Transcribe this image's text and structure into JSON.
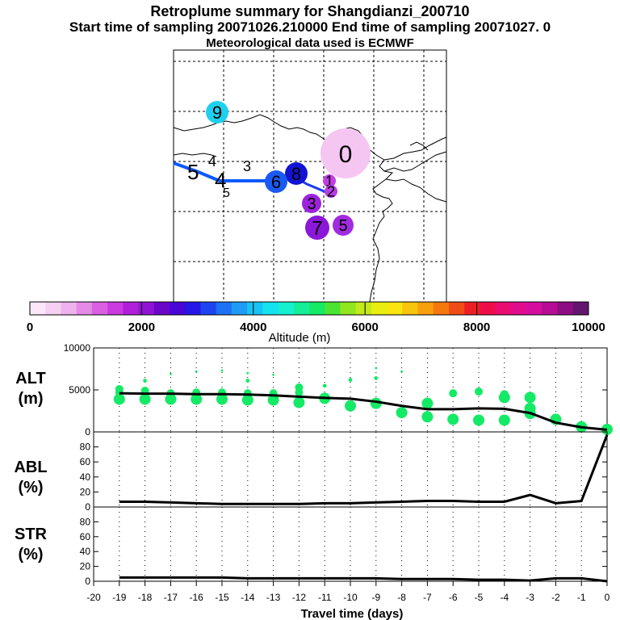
{
  "header": {
    "title": "Retroplume summary for Shangdianzi_200710",
    "subtitle": "Start time of sampling 20071026.210000     End time of sampling 20071027.     0",
    "met": "Meteorological data used is ECMWF"
  },
  "map": {
    "track_color": "#0a5aff",
    "track_color2": "#1a3cf0",
    "numbers_left": [
      "5",
      "4",
      "3",
      "4",
      "5"
    ],
    "markers": [
      {
        "label": "0",
        "color": "#f6c6f3",
        "size": "large"
      },
      {
        "label": "9",
        "color": "#1fd0ee",
        "size": "small"
      },
      {
        "label": "8",
        "color": "#1313d6",
        "size": "small"
      },
      {
        "label": "6",
        "color": "#1a5af2",
        "size": "small"
      },
      {
        "label": "1",
        "color": "#c23de6",
        "size": "tiny"
      },
      {
        "label": "2",
        "color": "#b83de6",
        "size": "tiny"
      },
      {
        "label": "3",
        "color": "#9c23db",
        "size": "small"
      },
      {
        "label": "7",
        "color": "#8b18d8",
        "size": "small"
      },
      {
        "label": "5",
        "color": "#a12be0",
        "size": "small"
      }
    ]
  },
  "colorbar": {
    "label": "Altitude (m)",
    "ticks": [
      "0",
      "2000",
      "4000",
      "6000",
      "8000",
      "10000"
    ],
    "colors": [
      "#fbe6fa",
      "#f5d0f3",
      "#eeb3ee",
      "#e68ae8",
      "#da60e2",
      "#c93be0",
      "#b11fdb",
      "#8f13d4",
      "#6a06c8",
      "#4a06d6",
      "#2717e6",
      "#1d44f0",
      "#1e70f4",
      "#1e9cf5",
      "#17c3f3",
      "#14e2ef",
      "#14f0d0",
      "#14ee98",
      "#14ea66",
      "#4be433",
      "#90e61f",
      "#c2ea18",
      "#e8ef10",
      "#f9e60e",
      "#f9c40c",
      "#f8a00c",
      "#f4780e",
      "#f04d16",
      "#ee1f24",
      "#f00c49",
      "#e90c71",
      "#e10b8e",
      "#d40ca0",
      "#b60c96",
      "#8d0e82",
      "#641570"
    ]
  },
  "chart_data": [
    {
      "type": "line",
      "panel": "ALT",
      "ylabel": "ALT\n(m)",
      "ylim": [
        0,
        10000
      ],
      "yticks": [
        "10000",
        "5000",
        "0"
      ],
      "x": [
        -19,
        -18,
        -17,
        -16,
        -15,
        -14,
        -13,
        -12,
        -11,
        -10,
        -9,
        -8,
        -7,
        -6,
        -5,
        -4,
        -3,
        -2,
        -1,
        0
      ],
      "values": [
        4600,
        4550,
        4550,
        4500,
        4500,
        4450,
        4350,
        4200,
        4050,
        3950,
        3600,
        3100,
        2700,
        2700,
        2800,
        2750,
        2250,
        1100,
        550,
        250
      ],
      "scatter_color": "#14ea66",
      "scatter": [
        {
          "x": -19,
          "y": [
            5100,
            4700,
            3900
          ]
        },
        {
          "x": -18,
          "y": [
            6100,
            4900,
            4500,
            3900
          ]
        },
        {
          "x": -17,
          "y": [
            6900,
            4600,
            3900
          ]
        },
        {
          "x": -16,
          "y": [
            7200,
            4700,
            3900
          ]
        },
        {
          "x": -15,
          "y": [
            7300,
            4700,
            3900
          ]
        },
        {
          "x": -14,
          "y": [
            7000,
            6100,
            4600,
            3800
          ]
        },
        {
          "x": -13,
          "y": [
            6800,
            4600,
            3800
          ]
        },
        {
          "x": -12,
          "y": [
            5300,
            4700,
            3500
          ]
        },
        {
          "x": -11,
          "y": [
            5500,
            4000
          ]
        },
        {
          "x": -10,
          "y": [
            6200,
            3100
          ]
        },
        {
          "x": -9,
          "y": [
            7600,
            6400,
            3400
          ]
        },
        {
          "x": -8,
          "y": [
            7200,
            2300
          ]
        },
        {
          "x": -7,
          "y": [
            3400,
            1800
          ]
        },
        {
          "x": -6,
          "y": [
            4600,
            1500
          ]
        },
        {
          "x": -5,
          "y": [
            4800,
            1400
          ]
        },
        {
          "x": -4,
          "y": [
            4500,
            4100,
            1400
          ]
        },
        {
          "x": -3,
          "y": [
            4100,
            2800,
            2200
          ]
        },
        {
          "x": -2,
          "y": [
            1500
          ]
        },
        {
          "x": -1,
          "y": [
            600
          ]
        },
        {
          "x": 0,
          "y": [
            300
          ]
        }
      ]
    },
    {
      "type": "line",
      "panel": "ABL",
      "ylabel": "ABL\n(%)",
      "ylim": [
        0,
        100
      ],
      "yticks": [
        "80",
        "60",
        "40",
        "20",
        "0"
      ],
      "x": [
        -19,
        -18,
        -17,
        -16,
        -15,
        -14,
        -13,
        -12,
        -11,
        -10,
        -9,
        -8,
        -7,
        -6,
        -5,
        -4,
        -3,
        -2,
        -1,
        0
      ],
      "values": [
        7,
        7,
        6,
        5,
        4,
        4,
        4,
        4,
        5,
        5,
        6,
        7,
        8,
        8,
        7,
        7,
        16,
        5,
        8,
        96
      ]
    },
    {
      "type": "line",
      "panel": "STR",
      "ylabel": "STR\n(%)",
      "ylim": [
        0,
        100
      ],
      "yticks": [
        "80",
        "60",
        "40",
        "20",
        "0"
      ],
      "x": [
        -19,
        -18,
        -17,
        -16,
        -15,
        -14,
        -13,
        -12,
        -11,
        -10,
        -9,
        -8,
        -7,
        -6,
        -5,
        -4,
        -3,
        -2,
        -1,
        0
      ],
      "values": [
        5,
        5,
        5,
        5,
        5,
        4,
        4,
        4,
        4,
        4,
        4,
        3,
        3,
        3,
        2,
        2,
        1,
        4,
        4,
        0
      ]
    }
  ],
  "xaxis": {
    "label": "Travel time (days)",
    "ticks": [
      "-20",
      "-19",
      "-18",
      "-17",
      "-16",
      "-15",
      "-14",
      "-13",
      "-12",
      "-11",
      "-10",
      "-9",
      "-8",
      "-7",
      "-6",
      "-5",
      "-4",
      "-3",
      "-2",
      "-1",
      "0"
    ]
  }
}
